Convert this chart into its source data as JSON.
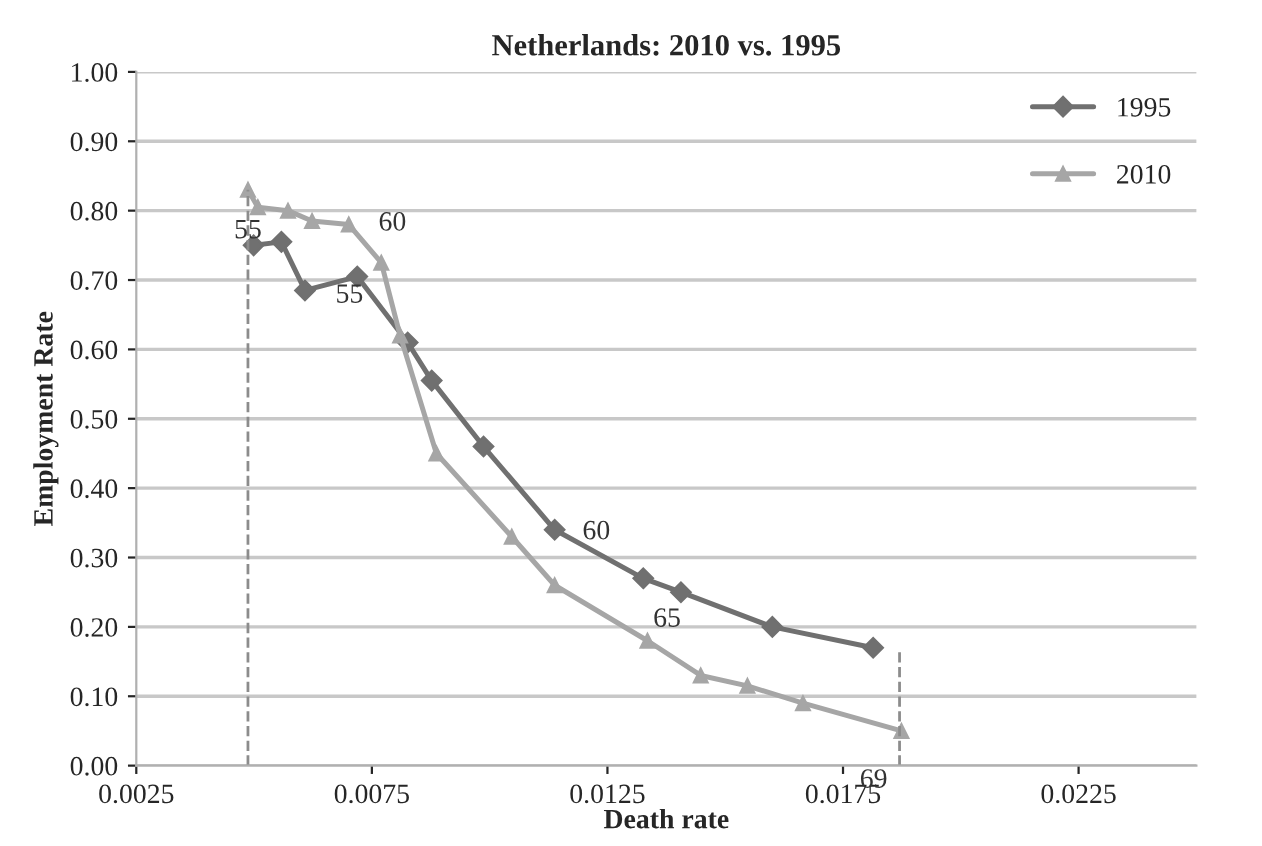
{
  "chart_data": {
    "type": "line",
    "title": "Netherlands: 2010 vs. 1995",
    "xlabel": "Death rate",
    "ylabel": "Employment Rate",
    "xlim": [
      0.0025,
      0.025
    ],
    "xticks": [
      0.0025,
      0.0075,
      0.0125,
      0.0175,
      0.0225
    ],
    "ylim": [
      0,
      1
    ],
    "yticks": [
      {
        "value": 0,
        "label": "0.00"
      },
      {
        "value": 0.1,
        "label": "0.10"
      },
      {
        "value": 0.2,
        "label": "0.20"
      },
      {
        "value": 0.3,
        "label": "0.30"
      },
      {
        "value": 0.4,
        "label": "0.40"
      },
      {
        "value": 0.5,
        "label": "0.50"
      },
      {
        "value": 0.6,
        "label": "0.60"
      },
      {
        "value": 0.7,
        "label": "0.70"
      },
      {
        "value": 0.8,
        "label": "0.80"
      },
      {
        "value": 0.9,
        "label": "0.90"
      },
      {
        "value": 1,
        "label": "1.00"
      }
    ],
    "grid": "y",
    "legend": "top right",
    "series": [
      {
        "name": "1995",
        "color": "#707070",
        "marker": "diamond",
        "x": [
          0.00499,
          0.00558,
          0.00608,
          0.00719,
          0.00826,
          0.00877,
          0.00987,
          0.01138,
          0.01326,
          0.01406,
          0.016,
          0.01814
        ],
        "values": [
          0.75,
          0.755,
          0.685,
          0.705,
          0.61,
          0.555,
          0.46,
          0.34,
          0.27,
          0.25,
          0.2,
          0.17
        ]
      },
      {
        "name": "2010",
        "color": "#a6a6a6",
        "marker": "triangle",
        "x": [
          0.00487,
          0.00508,
          0.00572,
          0.00623,
          0.00701,
          0.0077,
          0.0081,
          0.00887,
          0.01047,
          0.01138,
          0.01335,
          0.01448,
          0.01547,
          0.01665,
          0.01874
        ],
        "values": [
          0.83,
          0.805,
          0.8,
          0.785,
          0.78,
          0.725,
          0.62,
          0.45,
          0.33,
          0.26,
          0.18,
          0.13,
          0.115,
          0.09,
          0.05
        ]
      },
      {
        "color": "#8c8c8c",
        "marker": "none",
        "line_style": "dashed",
        "x": [
          0.00487,
          0.00487
        ],
        "values": [
          0,
          0.83
        ]
      },
      {
        "color": "#8c8c8c",
        "marker": "none",
        "line_style": "dashed",
        "x": [
          0.0187,
          0.0187
        ],
        "values": [
          0,
          0.165
        ]
      }
    ],
    "annotations": [
      {
        "text": "55",
        "x": 0.00487,
        "y": 0.83
      },
      {
        "text": "55",
        "x": 0.00608,
        "y": 0.685
      },
      {
        "text": "60",
        "x": 0.0077,
        "y": 0.725
      },
      {
        "text": "60",
        "x": 0.01138,
        "y": 0.34
      },
      {
        "text": "65",
        "x": 0.01406,
        "y": 0.25
      },
      {
        "text": "69",
        "x": 0.01874,
        "y": 0.05
      }
    ]
  }
}
